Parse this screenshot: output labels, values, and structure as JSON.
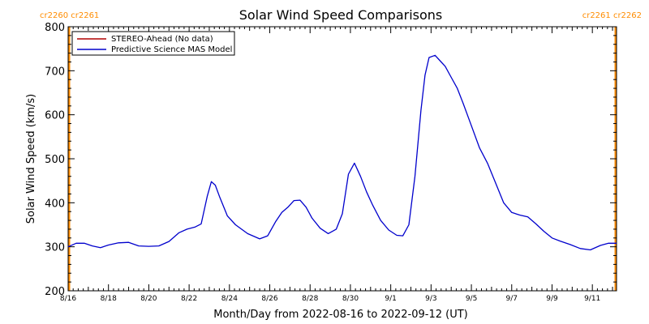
{
  "chart_data": {
    "type": "line",
    "title": "Solar Wind Speed Comparisons",
    "xlabel": "Month/Day from 2022-08-16 to 2022-09-12 (UT)",
    "ylabel": "Solar Wind Speed (km/s)",
    "x_range_days": [
      0,
      27.2
    ],
    "ylim": [
      200,
      800
    ],
    "y_ticks": [
      200,
      300,
      400,
      500,
      600,
      700,
      800
    ],
    "x_ticks": [
      {
        "day": 0,
        "label": "8/16"
      },
      {
        "day": 2,
        "label": "8/18"
      },
      {
        "day": 4,
        "label": "8/20"
      },
      {
        "day": 6,
        "label": "8/22"
      },
      {
        "day": 8,
        "label": "8/24"
      },
      {
        "day": 10,
        "label": "8/26"
      },
      {
        "day": 12,
        "label": "8/28"
      },
      {
        "day": 14,
        "label": "8/30"
      },
      {
        "day": 16,
        "label": "9/1"
      },
      {
        "day": 18,
        "label": "9/3"
      },
      {
        "day": 20,
        "label": "9/5"
      },
      {
        "day": 22,
        "label": "9/7"
      },
      {
        "day": 24,
        "label": "9/9"
      },
      {
        "day": 26,
        "label": "9/11"
      }
    ],
    "legend": {
      "placement": "top-left",
      "entries": [
        {
          "label": "STEREO-Ahead (No data)",
          "color": "#b00000"
        },
        {
          "label": "Predictive Science MAS Model",
          "color": "#0000cc"
        }
      ]
    },
    "carrington_markers": [
      {
        "day": 0.05,
        "label": "cr2260 cr2261",
        "side": "left",
        "color": "#ff8c00"
      },
      {
        "day": 27.15,
        "label": "cr2261 cr2262",
        "side": "right",
        "color": "#ff8c00"
      }
    ],
    "series": [
      {
        "name": "STEREO-Ahead (No data)",
        "color": "#b00000",
        "x": [],
        "values": []
      },
      {
        "name": "Predictive Science MAS Model",
        "color": "#0000cc",
        "x": [
          0,
          0.4,
          0.8,
          1.2,
          1.6,
          2.0,
          2.5,
          3.0,
          3.5,
          4.0,
          4.5,
          5.0,
          5.5,
          5.9,
          6.3,
          6.6,
          6.9,
          7.1,
          7.3,
          7.5,
          7.9,
          8.3,
          8.9,
          9.5,
          9.9,
          10.3,
          10.6,
          10.9,
          11.2,
          11.5,
          11.8,
          12.1,
          12.5,
          12.9,
          13.3,
          13.6,
          13.9,
          14.2,
          14.5,
          14.8,
          15.1,
          15.5,
          15.9,
          16.3,
          16.6,
          16.9,
          17.2,
          17.5,
          17.7,
          17.9,
          18.2,
          18.5,
          18.7,
          19.0,
          19.3,
          19.6,
          20.0,
          20.4,
          20.8,
          21.2,
          21.6,
          22.0,
          22.4,
          22.8,
          23.2,
          23.6,
          24.0,
          24.4,
          24.9,
          25.4,
          25.9,
          26.4,
          26.8,
          27.2
        ],
        "values": [
          300,
          308,
          308,
          302,
          298,
          304,
          309,
          310,
          302,
          301,
          302,
          312,
          332,
          340,
          345,
          352,
          415,
          448,
          440,
          415,
          370,
          350,
          330,
          318,
          325,
          358,
          378,
          390,
          405,
          406,
          390,
          365,
          342,
          330,
          340,
          375,
          465,
          490,
          460,
          425,
          395,
          360,
          338,
          326,
          325,
          350,
          460,
          610,
          690,
          730,
          735,
          720,
          710,
          685,
          660,
          625,
          575,
          525,
          490,
          445,
          400,
          378,
          372,
          368,
          352,
          335,
          320,
          313,
          305,
          296,
          293,
          303,
          308,
          308
        ]
      }
    ]
  }
}
